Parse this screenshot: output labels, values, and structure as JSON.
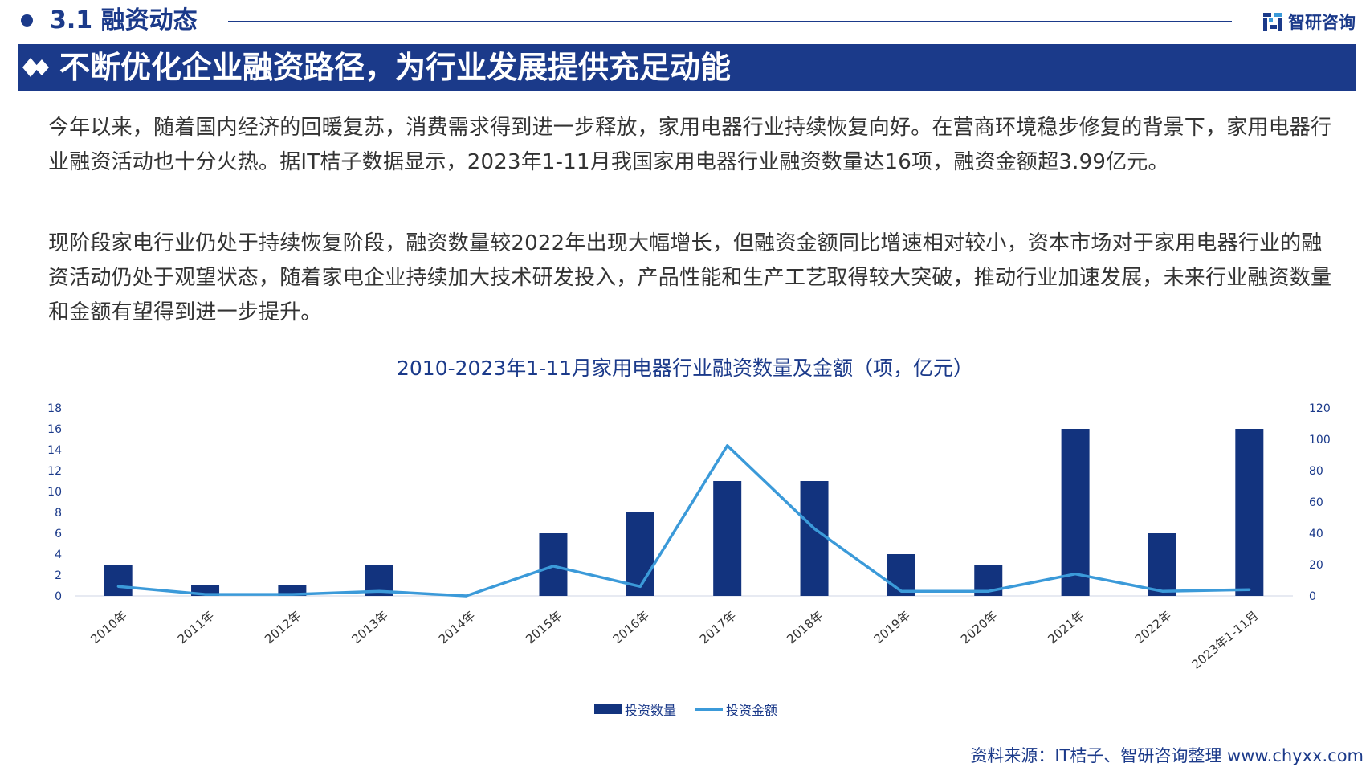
{
  "header": {
    "section_title": "3.1 融资动态",
    "brand_name": "智研咨询",
    "banner_title": "不断优化企业融资路径，为行业发展提供充足动能"
  },
  "paragraphs": [
    "今年以来，随着国内经济的回暖复苏，消费需求得到进一步释放，家用电器行业持续恢复向好。在营商环境稳步修复的背景下，家用电器行业融资活动也十分火热。据IT桔子数据显示，2023年1-11月我国家用电器行业融资数量达16项，融资金额超3.99亿元。",
    "现阶段家电行业仍处于持续恢复阶段，融资数量较2022年出现大幅增长，但融资金额同比增速相对较小，资本市场对于家用电器行业的融资活动仍处于观望状态，随着家电企业持续加大技术研发投入，产品性能和生产工艺取得较大突破，推动行业加速发展，未来行业融资数量和金额有望得到进一步提升。"
  ],
  "source": "资料来源：IT桔子、智研咨询整理   www.chyxx.com",
  "colors": {
    "primary": "#1b3a8a",
    "bar": "#12337e",
    "line": "#3b9ad9"
  },
  "chart_data": {
    "type": "bar",
    "title": "2010-2023年1-11月家用电器行业融资数量及金额（项，亿元）",
    "categories": [
      "2010年",
      "2011年",
      "2012年",
      "2013年",
      "2014年",
      "2015年",
      "2016年",
      "2017年",
      "2018年",
      "2019年",
      "2020年",
      "2021年",
      "2022年",
      "2023年1-11月"
    ],
    "series": [
      {
        "name": "投资数量",
        "type": "bar",
        "axis": "left",
        "values": [
          3,
          1,
          1,
          3,
          0,
          6,
          8,
          11,
          11,
          4,
          3,
          16,
          6,
          16
        ]
      },
      {
        "name": "投资金额",
        "type": "line",
        "axis": "right",
        "values": [
          6,
          1,
          1,
          3,
          0,
          19,
          6,
          96,
          43,
          3,
          3,
          14,
          3,
          3.99
        ]
      }
    ],
    "y_left": {
      "min": 0,
      "max": 18,
      "ticks": [
        0,
        2,
        4,
        6,
        8,
        10,
        12,
        14,
        16,
        18
      ]
    },
    "y_right": {
      "min": 0,
      "max": 120,
      "ticks": [
        0,
        20,
        40,
        60,
        80,
        100,
        120
      ]
    },
    "grid": false,
    "legend_position": "bottom"
  }
}
